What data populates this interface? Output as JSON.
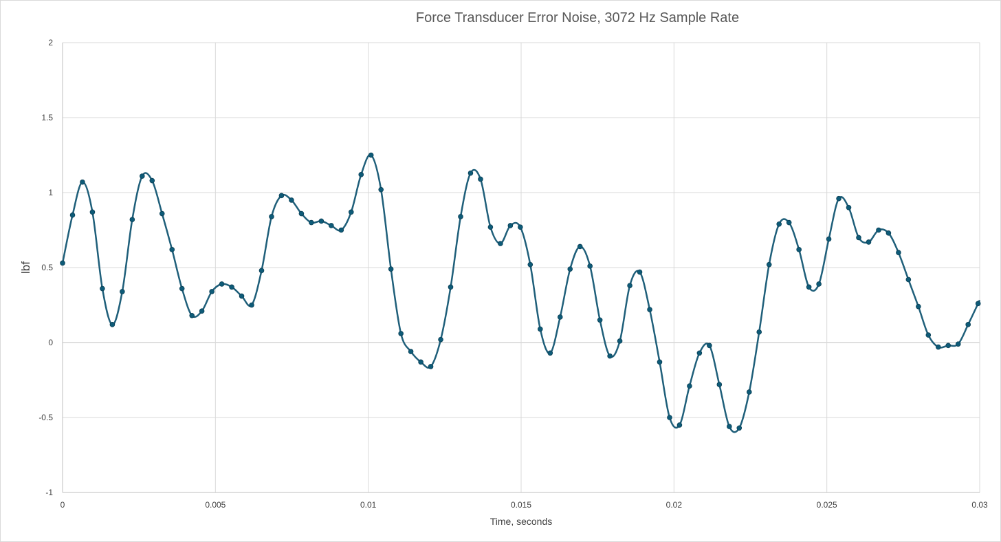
{
  "chart_data": {
    "type": "scatter",
    "title": "Force Transducer Error Noise, 3072 Hz Sample Rate",
    "xlabel": "Time, seconds",
    "ylabel": "lbf",
    "xlim": [
      0,
      0.03
    ],
    "ylim": [
      -1,
      2
    ],
    "x_ticks": [
      "0",
      "0.005",
      "0.01",
      "0.015",
      "0.02",
      "0.025",
      "0.03"
    ],
    "y_ticks": [
      "2",
      "1.5",
      "1",
      "0.5",
      "0",
      "-0.5",
      "-1"
    ],
    "x_tick_values": [
      0,
      0.005,
      0.01,
      0.015,
      0.02,
      0.025,
      0.03
    ],
    "y_tick_values": [
      2,
      1.5,
      1,
      0.5,
      0,
      -0.5,
      -1
    ],
    "grid": true,
    "legend": "none",
    "series": [
      {
        "color": "#1f5f7a",
        "marker_color": "#0e5b78",
        "smooth": true,
        "x": [
          0,
          0.000326,
          0.000651,
          0.000977,
          0.001302,
          0.001628,
          0.001953,
          0.002279,
          0.002604,
          0.00293,
          0.003255,
          0.003581,
          0.003906,
          0.004232,
          0.004557,
          0.004883,
          0.005208,
          0.005534,
          0.005859,
          0.006185,
          0.00651,
          0.006836,
          0.007161,
          0.007487,
          0.007813,
          0.008138,
          0.008464,
          0.008789,
          0.009115,
          0.00944,
          0.009766,
          0.010091,
          0.010417,
          0.010742,
          0.011068,
          0.011393,
          0.011719,
          0.012044,
          0.01237,
          0.012695,
          0.013021,
          0.013346,
          0.013672,
          0.013997,
          0.014323,
          0.014648,
          0.014974,
          0.015299,
          0.015625,
          0.015951,
          0.016276,
          0.016602,
          0.016927,
          0.017253,
          0.017578,
          0.017904,
          0.018229,
          0.018555,
          0.01888,
          0.019206,
          0.019531,
          0.019857,
          0.020182,
          0.020508,
          0.020833,
          0.021159,
          0.021484,
          0.02181,
          0.022135,
          0.022461,
          0.022786,
          0.023112,
          0.023438,
          0.023763,
          0.024089,
          0.024414,
          0.02474,
          0.025065,
          0.025391,
          0.025716,
          0.026042,
          0.026367,
          0.026693,
          0.027018,
          0.027344,
          0.027669,
          0.027995,
          0.02832,
          0.028646,
          0.028971,
          0.029297,
          0.029622,
          0.029948
        ],
        "y": [
          0.53,
          0.85,
          1.07,
          0.87,
          0.36,
          0.12,
          0.34,
          0.82,
          1.11,
          1.08,
          0.86,
          0.62,
          0.36,
          0.18,
          0.21,
          0.34,
          0.39,
          0.37,
          0.31,
          0.25,
          0.48,
          0.84,
          0.98,
          0.95,
          0.86,
          0.8,
          0.81,
          0.78,
          0.75,
          0.87,
          1.12,
          1.25,
          1.02,
          0.49,
          0.06,
          -0.06,
          -0.13,
          -0.16,
          0.02,
          0.37,
          0.84,
          1.13,
          1.09,
          0.77,
          0.66,
          0.78,
          0.77,
          0.52,
          0.09,
          -0.07,
          0.17,
          0.49,
          0.64,
          0.51,
          0.15,
          -0.09,
          0.01,
          0.38,
          0.47,
          0.22,
          -0.13,
          -0.5,
          -0.55,
          -0.29,
          -0.07,
          -0.02,
          -0.28,
          -0.56,
          -0.57,
          -0.33,
          0.07,
          0.52,
          0.79,
          0.8,
          0.62,
          0.37,
          0.39,
          0.69,
          0.96,
          0.9,
          0.7,
          0.67,
          0.75,
          0.73,
          0.6,
          0.42,
          0.24,
          0.05,
          -0.03,
          -0.02,
          -0.01,
          0.12,
          0.26
        ]
      }
    ]
  }
}
